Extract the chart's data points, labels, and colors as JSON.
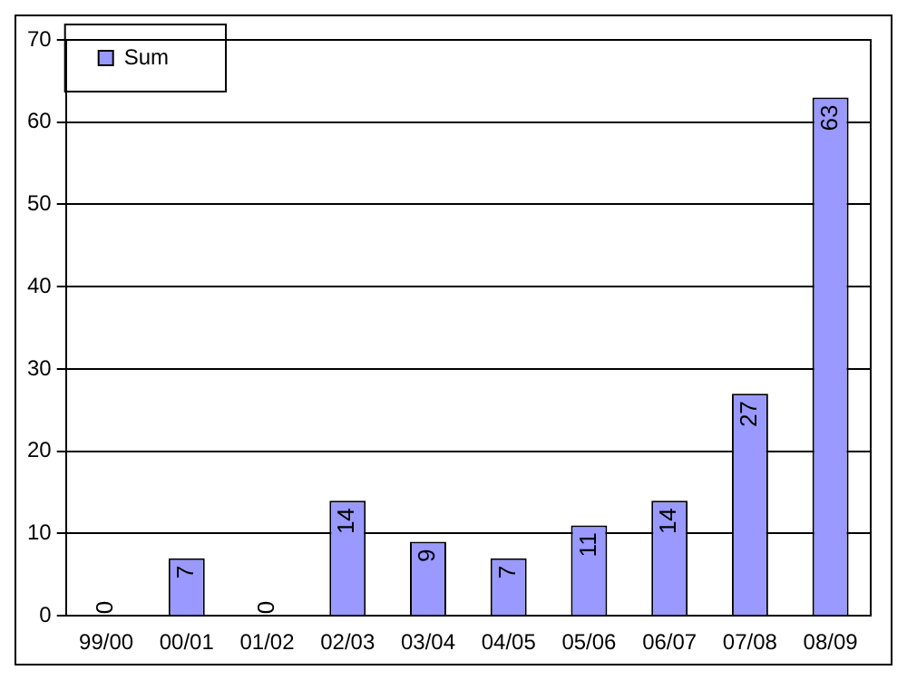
{
  "chart_data": {
    "type": "bar",
    "categories": [
      "99/00",
      "00/01",
      "01/02",
      "02/03",
      "03/04",
      "04/05",
      "05/06",
      "06/07",
      "07/08",
      "08/09"
    ],
    "series": [
      {
        "name": "Sum",
        "color": "#9999ff",
        "values": [
          0,
          7,
          0,
          14,
          9,
          7,
          11,
          14,
          27,
          63
        ]
      }
    ],
    "ylim": [
      0,
      70
    ],
    "yticks": [
      0,
      10,
      20,
      30,
      40,
      50,
      60,
      70
    ],
    "grid": "y",
    "legend": "top left",
    "data_labels": true
  }
}
